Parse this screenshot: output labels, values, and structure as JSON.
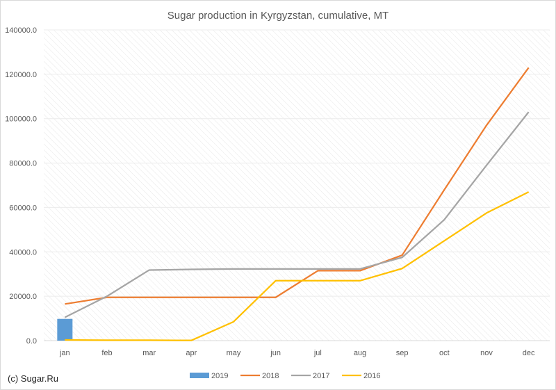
{
  "chart_data": {
    "type": "line",
    "title": "Sugar production in Kyrgyzstan, cumulative, MT",
    "categories": [
      "jan",
      "feb",
      "mar",
      "apr",
      "may",
      "jun",
      "jul",
      "aug",
      "sep",
      "oct",
      "nov",
      "dec"
    ],
    "ylim": [
      0,
      140000
    ],
    "yticks": [
      "0.0",
      "20000.0",
      "40000.0",
      "60000.0",
      "80000.0",
      "100000.0",
      "120000.0",
      "140000.0"
    ],
    "grid": true,
    "legend_position": "bottom",
    "series": [
      {
        "name": "2019",
        "kind": "bar",
        "color": "#5b9bd5",
        "values": [
          9800,
          null,
          null,
          null,
          null,
          null,
          null,
          null,
          null,
          null,
          null,
          null
        ]
      },
      {
        "name": "2018",
        "kind": "line",
        "color": "#ed7d31",
        "values": [
          16500,
          19500,
          19500,
          19500,
          19500,
          19500,
          31500,
          31500,
          38500,
          68000,
          97000,
          123000
        ]
      },
      {
        "name": "2017",
        "kind": "line",
        "color": "#a5a5a5",
        "values": [
          10500,
          20000,
          31800,
          32100,
          32300,
          32300,
          32300,
          32300,
          37500,
          54500,
          79000,
          103000
        ]
      },
      {
        "name": "2016",
        "kind": "line",
        "color": "#ffc000",
        "values": [
          300,
          200,
          200,
          100,
          8500,
          27000,
          27000,
          27000,
          32500,
          45000,
          57500,
          67000
        ]
      }
    ]
  },
  "credit": "(c) Sugar.Ru"
}
